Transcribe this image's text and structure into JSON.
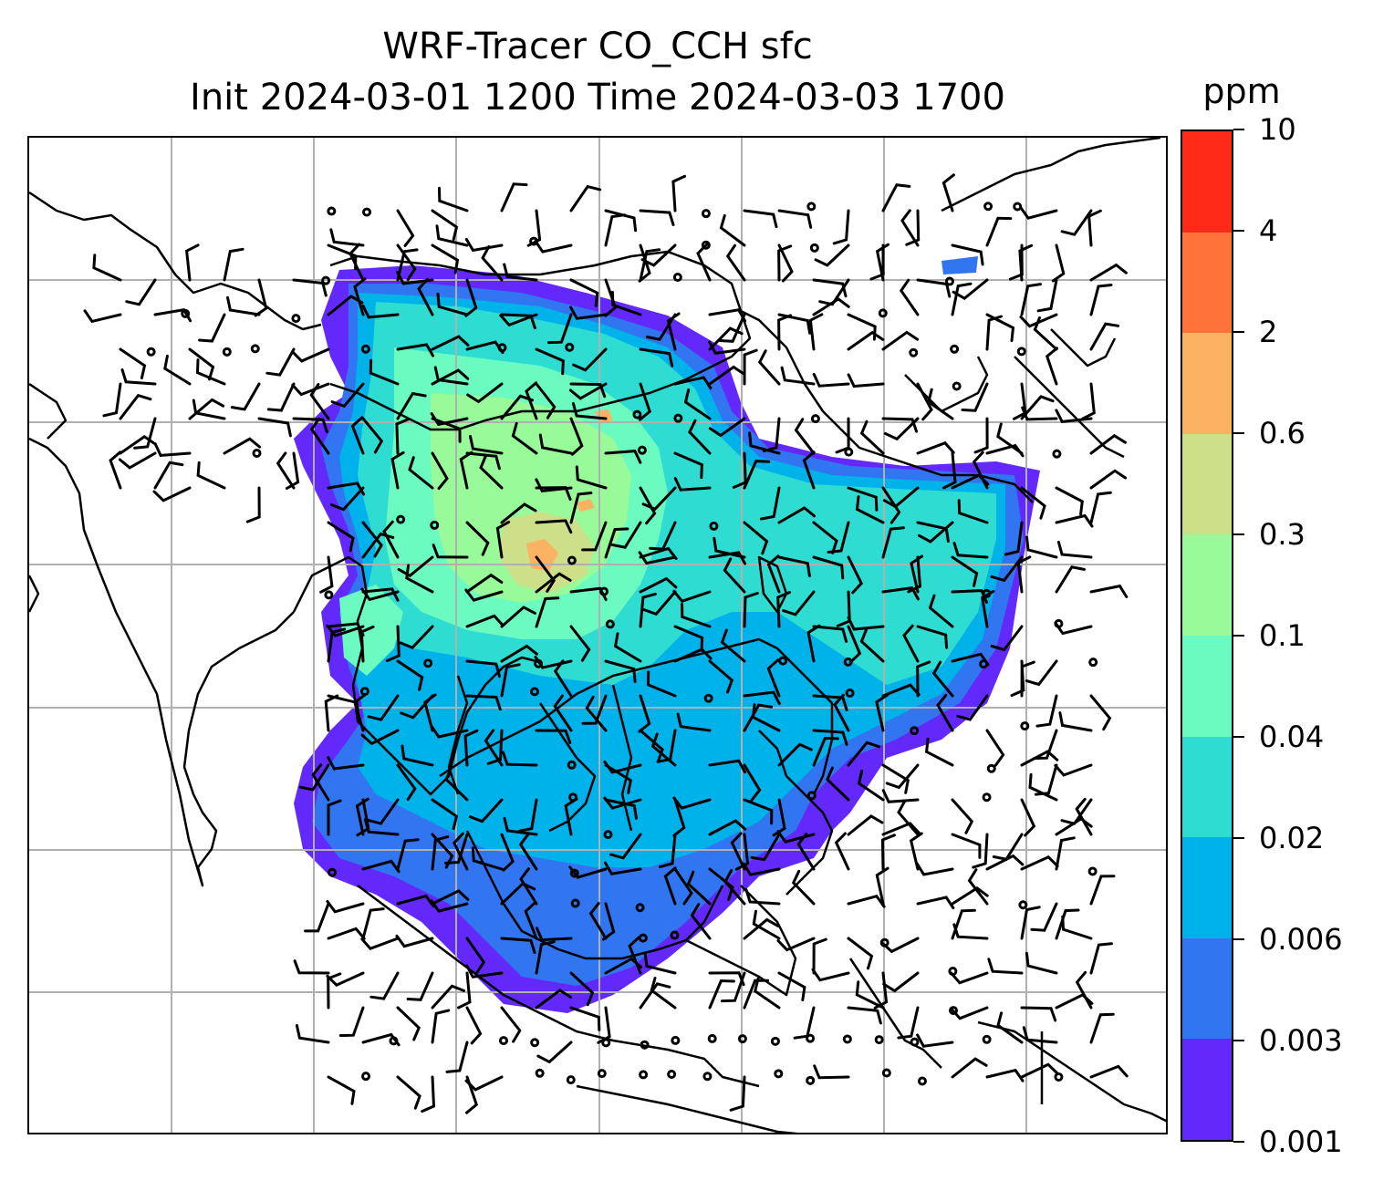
{
  "title": {
    "line1": "WRF-Tracer CO_CCH sfc",
    "line2": "Init 2024-03-01 1200 Time 2024-03-03 1700"
  },
  "colorbar": {
    "unit": "ppm",
    "tick_labels": [
      "0.001",
      "0.003",
      "0.006",
      "0.02",
      "0.04",
      "0.1",
      "0.3",
      "0.6",
      "2",
      "4",
      "10"
    ],
    "colors": [
      "#6329fa",
      "#3275f1",
      "#00b2ea",
      "#2fdcd2",
      "#6bfbc0",
      "#98fa98",
      "#cddf88",
      "#fbb263",
      "#ff7239",
      "#ff2a18"
    ]
  },
  "map": {
    "gridlines": true,
    "grid_color": "#b0b0b0",
    "coastline_color": "#000000",
    "features": [
      "coastlines",
      "country-borders",
      "wind-barbs",
      "calm-wind-circles",
      "tracer-concentration-shading"
    ]
  }
}
